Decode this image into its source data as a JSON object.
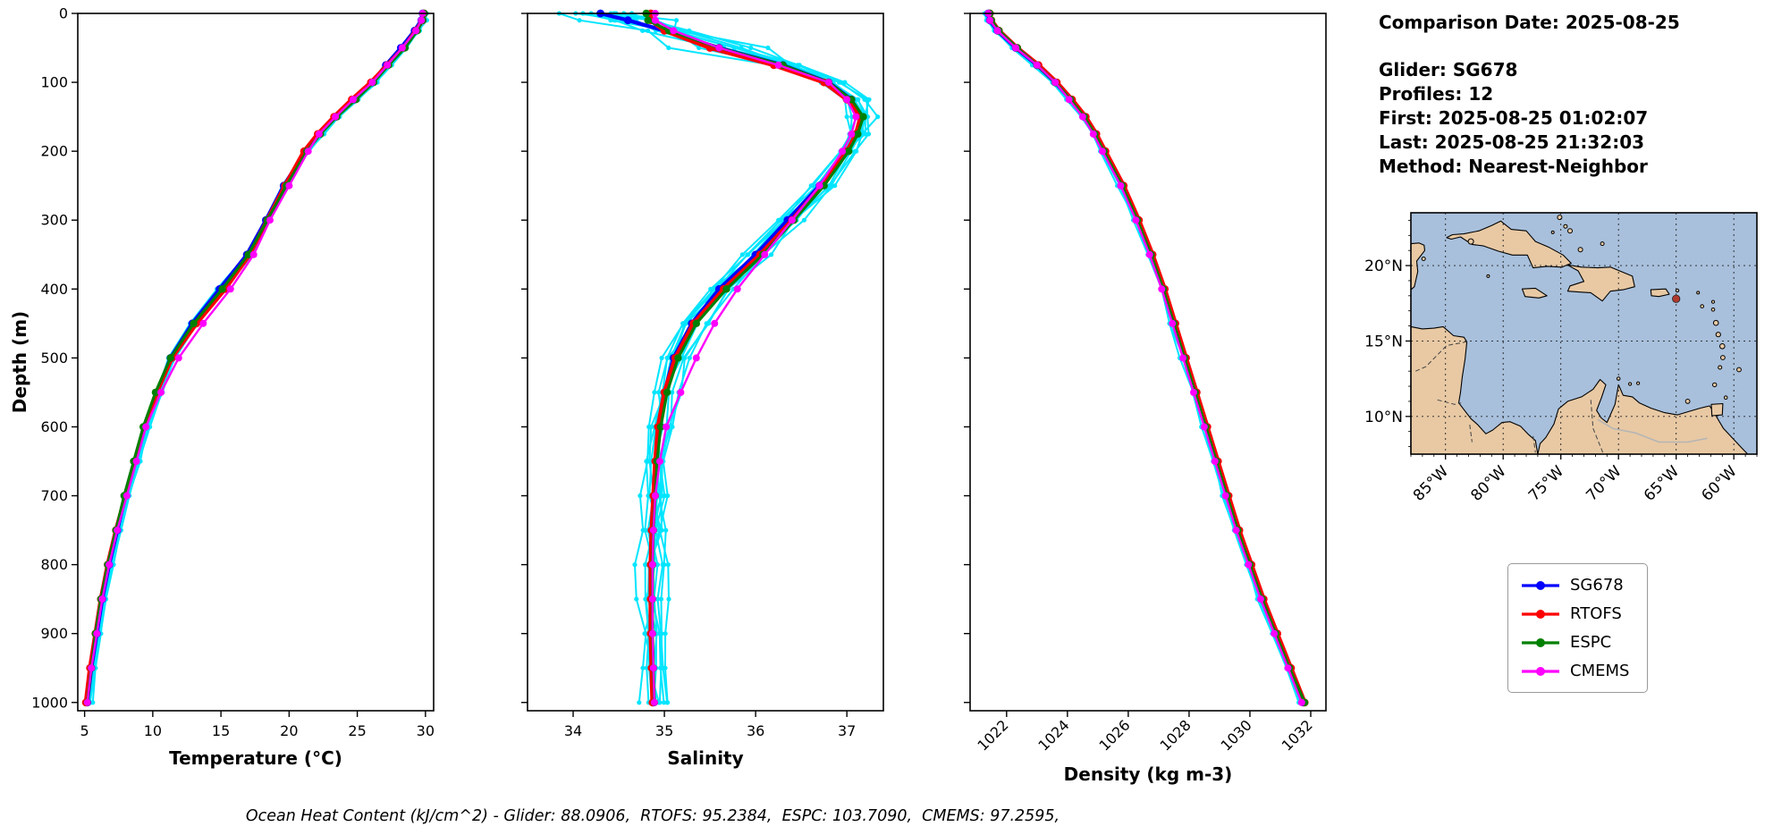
{
  "info_panel": {
    "comparison_date": "Comparison Date: 2025-08-25",
    "glider": "Glider: SG678",
    "profiles": "Profiles: 12",
    "first": "First: 2025-08-25 01:02:07",
    "last": "Last: 2025-08-25 21:32:03",
    "method": "Method: Nearest-Neighbor"
  },
  "legend": {
    "entries": [
      {
        "label": "SG678",
        "color": "#0000ff"
      },
      {
        "label": "RTOFS",
        "color": "#ff0000"
      },
      {
        "label": "ESPC",
        "color": "#008000"
      },
      {
        "label": "CMEMS",
        "color": "#ff00ff"
      }
    ]
  },
  "footer": {
    "ohc_text": "Ocean Heat Content (kJ/cm^2) - Glider: 88.0906,  RTOFS: 95.2384,  ESPC: 103.7090,  CMEMS: 97.2595,"
  },
  "chart_data": [
    {
      "type": "line",
      "title": "",
      "xlabel": "Temperature (°C)",
      "ylabel": "Depth (m)",
      "xlim": [
        4.5,
        30.6
      ],
      "ylim": [
        1012,
        0
      ],
      "xticks": [
        5,
        10,
        15,
        20,
        25,
        30
      ],
      "yticks": [
        0,
        100,
        200,
        300,
        400,
        500,
        600,
        700,
        800,
        900,
        1000
      ],
      "y_depths": [
        0,
        10,
        25,
        50,
        75,
        100,
        125,
        150,
        175,
        200,
        250,
        300,
        350,
        400,
        450,
        500,
        550,
        600,
        650,
        700,
        750,
        800,
        850,
        900,
        950,
        1000
      ],
      "scatter_series": {
        "name": "SG678 individual profiles",
        "color": "#00e5ff"
      },
      "series": [
        {
          "name": "SG678",
          "color": "#0000ff",
          "values": [
            29.8,
            29.7,
            29.2,
            28.2,
            27.1,
            26.1,
            24.8,
            23.4,
            22.2,
            21.2,
            19.6,
            18.3,
            16.9,
            14.9,
            12.9,
            11.3,
            10.3,
            9.4,
            8.7,
            8.0,
            7.4,
            6.8,
            6.3,
            5.9,
            5.5,
            5.2
          ]
        },
        {
          "name": "RTOFS",
          "color": "#ff0000",
          "values": [
            29.9,
            29.8,
            29.3,
            28.4,
            27.2,
            26.0,
            24.6,
            23.3,
            22.1,
            21.1,
            19.7,
            18.4,
            17.1,
            15.3,
            13.2,
            11.4,
            10.3,
            9.4,
            8.7,
            8.0,
            7.3,
            6.7,
            6.2,
            5.8,
            5.4,
            5.1
          ]
        },
        {
          "name": "ESPC",
          "color": "#008000",
          "values": [
            29.9,
            29.8,
            29.4,
            28.5,
            27.3,
            26.2,
            24.9,
            23.5,
            22.3,
            21.3,
            19.8,
            18.4,
            17.0,
            15.1,
            13.0,
            11.3,
            10.2,
            9.3,
            8.6,
            7.9,
            7.3,
            6.7,
            6.2,
            5.8,
            5.5,
            5.2
          ]
        },
        {
          "name": "CMEMS",
          "color": "#ff00ff",
          "values": [
            29.8,
            29.7,
            29.3,
            28.3,
            27.2,
            26.1,
            24.7,
            23.4,
            22.2,
            21.4,
            20.0,
            18.6,
            17.4,
            15.7,
            13.7,
            11.9,
            10.6,
            9.5,
            8.8,
            8.1,
            7.4,
            6.8,
            6.3,
            5.9,
            5.5,
            5.2
          ]
        }
      ]
    },
    {
      "type": "line",
      "title": "",
      "xlabel": "Salinity",
      "ylabel": "Depth (m)",
      "xlim": [
        33.5,
        37.4
      ],
      "ylim": [
        1012,
        0
      ],
      "xticks": [
        34,
        35,
        36,
        37
      ],
      "yticks": [
        0,
        100,
        200,
        300,
        400,
        500,
        600,
        700,
        800,
        900,
        1000
      ],
      "y_depths": [
        0,
        10,
        25,
        50,
        75,
        100,
        125,
        150,
        175,
        200,
        250,
        300,
        350,
        400,
        450,
        500,
        550,
        600,
        650,
        700,
        750,
        800,
        850,
        900,
        950,
        1000
      ],
      "scatter_series": {
        "name": "SG678 individual profiles",
        "color": "#00e5ff"
      },
      "series": [
        {
          "name": "SG678",
          "color": "#0000ff",
          "values": [
            34.3,
            34.6,
            35.0,
            35.6,
            36.3,
            36.8,
            37.05,
            37.15,
            37.1,
            37.0,
            36.7,
            36.35,
            36.0,
            35.6,
            35.3,
            35.1,
            35.0,
            34.94,
            34.91,
            34.89,
            34.87,
            34.86,
            34.86,
            34.86,
            34.87,
            34.88
          ]
        },
        {
          "name": "RTOFS",
          "color": "#ff0000",
          "values": [
            34.85,
            34.85,
            35.0,
            35.5,
            36.2,
            36.75,
            37.0,
            37.15,
            37.1,
            37.0,
            36.72,
            36.4,
            36.05,
            35.65,
            35.32,
            35.12,
            35.0,
            34.93,
            34.9,
            34.88,
            34.86,
            34.85,
            34.85,
            34.85,
            34.86,
            34.87
          ]
        },
        {
          "name": "ESPC",
          "color": "#008000",
          "values": [
            34.8,
            34.82,
            35.05,
            35.6,
            36.3,
            36.8,
            37.05,
            37.18,
            37.12,
            37.02,
            36.75,
            36.42,
            36.08,
            35.68,
            35.35,
            35.15,
            35.03,
            34.96,
            34.92,
            34.9,
            34.88,
            34.87,
            34.87,
            34.87,
            34.88,
            34.89
          ]
        },
        {
          "name": "CMEMS",
          "color": "#ff00ff",
          "values": [
            34.9,
            34.9,
            35.1,
            35.6,
            36.25,
            36.8,
            37.0,
            37.1,
            37.05,
            36.95,
            36.7,
            36.4,
            36.1,
            35.8,
            35.55,
            35.35,
            35.18,
            35.02,
            34.95,
            34.9,
            34.88,
            34.87,
            34.87,
            34.87,
            34.88,
            34.89
          ]
        }
      ]
    },
    {
      "type": "line",
      "title": "",
      "xlabel": "Density (kg m-3)",
      "ylabel": "Depth (m)",
      "xlim": [
        1020.8,
        1032.5
      ],
      "ylim": [
        1012,
        0
      ],
      "xticks": [
        1022,
        1024,
        1026,
        1028,
        1030,
        1032
      ],
      "yticks": [
        0,
        100,
        200,
        300,
        400,
        500,
        600,
        700,
        800,
        900,
        1000
      ],
      "y_depths": [
        0,
        10,
        25,
        50,
        75,
        100,
        125,
        150,
        175,
        200,
        250,
        300,
        350,
        400,
        450,
        500,
        550,
        600,
        650,
        700,
        750,
        800,
        850,
        900,
        950,
        1000
      ],
      "scatter_series": {
        "name": "SG678 individual profiles",
        "color": "#00e5ff"
      },
      "series": [
        {
          "name": "SG678",
          "color": "#0000ff",
          "values": [
            1021.4,
            1021.45,
            1021.7,
            1022.3,
            1023.0,
            1023.6,
            1024.1,
            1024.55,
            1024.9,
            1025.2,
            1025.8,
            1026.3,
            1026.75,
            1027.15,
            1027.5,
            1027.85,
            1028.2,
            1028.55,
            1028.9,
            1029.25,
            1029.6,
            1030.0,
            1030.4,
            1030.85,
            1031.3,
            1031.75
          ]
        },
        {
          "name": "RTOFS",
          "color": "#ff0000",
          "values": [
            1021.45,
            1021.5,
            1021.75,
            1022.35,
            1023.05,
            1023.65,
            1024.15,
            1024.6,
            1024.95,
            1025.25,
            1025.85,
            1026.35,
            1026.8,
            1027.2,
            1027.55,
            1027.9,
            1028.25,
            1028.6,
            1028.95,
            1029.3,
            1029.65,
            1030.05,
            1030.45,
            1030.9,
            1031.35,
            1031.8
          ]
        },
        {
          "name": "ESPC",
          "color": "#008000",
          "values": [
            1021.45,
            1021.5,
            1021.75,
            1022.35,
            1023.0,
            1023.6,
            1024.1,
            1024.55,
            1024.9,
            1025.2,
            1025.8,
            1026.3,
            1026.75,
            1027.15,
            1027.5,
            1027.85,
            1028.2,
            1028.55,
            1028.9,
            1029.25,
            1029.6,
            1030.0,
            1030.4,
            1030.85,
            1031.3,
            1031.8
          ]
        },
        {
          "name": "CMEMS",
          "color": "#ff00ff",
          "values": [
            1021.4,
            1021.45,
            1021.7,
            1022.3,
            1023.0,
            1023.6,
            1024.05,
            1024.5,
            1024.85,
            1025.15,
            1025.75,
            1026.25,
            1026.7,
            1027.1,
            1027.45,
            1027.8,
            1028.15,
            1028.5,
            1028.85,
            1029.2,
            1029.55,
            1029.95,
            1030.35,
            1030.8,
            1031.25,
            1031.7
          ]
        }
      ]
    },
    {
      "type": "map",
      "region": "Caribbean Sea",
      "lonlim": [
        -88,
        -58
      ],
      "latlim": [
        7.5,
        23.5
      ],
      "lon_ticks": [
        -85,
        -80,
        -75,
        -70,
        -65,
        -60
      ],
      "lat_ticks": [
        20,
        15,
        10
      ],
      "lon_tick_labels": [
        "85°W",
        "80°W",
        "75°W",
        "70°W",
        "65°W",
        "60°W"
      ],
      "lat_tick_labels": [
        "20°N",
        "15°N",
        "10°N"
      ],
      "glider_marker": {
        "lon": -65.0,
        "lat": 17.8,
        "color": "#b03a2e"
      },
      "ocean_color": "#a8c0dc",
      "land_color": "#e8c9a4"
    }
  ]
}
